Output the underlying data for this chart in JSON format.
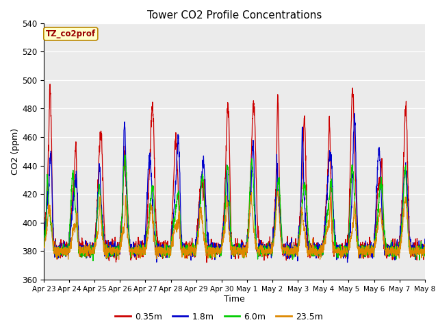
{
  "title": "Tower CO2 Profile Concentrations",
  "xlabel": "Time",
  "ylabel": "CO2 (ppm)",
  "ylim": [
    360,
    540
  ],
  "yticks": [
    360,
    380,
    400,
    420,
    440,
    460,
    480,
    500,
    520,
    540
  ],
  "background_color": "#ffffff",
  "plot_bg_color": "#ebebeb",
  "legend_label": "TZ_co2prof",
  "series": [
    {
      "label": "0.35m",
      "color": "#cc0000",
      "lw": 0.9
    },
    {
      "label": "1.8m",
      "color": "#0000cc",
      "lw": 0.9
    },
    {
      "label": "6.0m",
      "color": "#00cc00",
      "lw": 0.9
    },
    {
      "label": "23.5m",
      "color": "#dd8800",
      "lw": 0.9
    }
  ],
  "date_labels": [
    "Apr 23",
    "Apr 24",
    "Apr 25",
    "Apr 26",
    "Apr 27",
    "Apr 28",
    "Apr 29",
    "Apr 30",
    "May 1",
    "May 2",
    "May 3",
    "May 4",
    "May 5",
    "May 6",
    "May 7",
    "May 8"
  ],
  "n_days": 15,
  "pts_per_day": 144,
  "seed": 7
}
